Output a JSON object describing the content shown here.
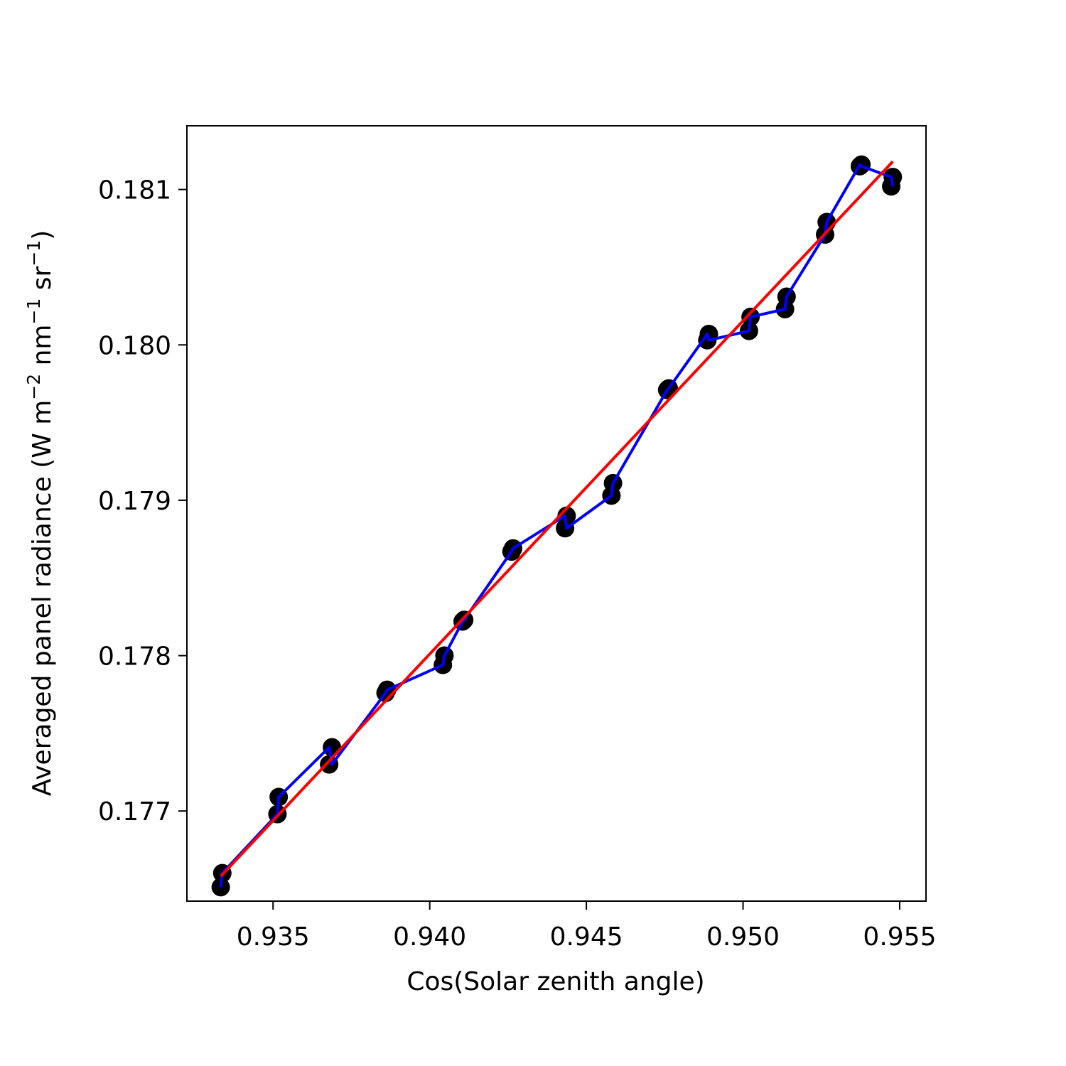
{
  "chart_data": {
    "type": "scatter",
    "title": "",
    "xlabel": "Cos(Solar zenith angle)",
    "ylabel": {
      "prefix": "Averaged panel radiance (W m",
      "exp1": "−2",
      "mid1": " nm",
      "exp2": "−1",
      "mid2": " sr",
      "exp3": "−1",
      "suffix": ")"
    },
    "xlim": [
      0.93225,
      0.95584
    ],
    "ylim": [
      0.17642,
      0.18141
    ],
    "xticks": [
      {
        "value": 0.935,
        "label": "0.935"
      },
      {
        "value": 0.94,
        "label": "0.940"
      },
      {
        "value": 0.945,
        "label": "0.945"
      },
      {
        "value": 0.95,
        "label": "0.950"
      },
      {
        "value": 0.955,
        "label": "0.955"
      }
    ],
    "yticks": [
      {
        "value": 0.177,
        "label": "0.177"
      },
      {
        "value": 0.178,
        "label": "0.178"
      },
      {
        "value": 0.179,
        "label": "0.179"
      },
      {
        "value": 0.18,
        "label": "0.180"
      },
      {
        "value": 0.181,
        "label": "0.181"
      }
    ],
    "grid": false,
    "series": [
      {
        "kind": "scatter",
        "color": "#000000",
        "x": [
          0.93333,
          0.93338,
          0.93514,
          0.93518,
          0.93679,
          0.93688,
          0.93859,
          0.93864,
          0.94042,
          0.94047,
          0.94105,
          0.9411,
          0.94261,
          0.94266,
          0.94432,
          0.94437,
          0.9458,
          0.94585,
          0.94758,
          0.94763,
          0.94886,
          0.94891,
          0.95019,
          0.95024,
          0.95134,
          0.95139,
          0.95262,
          0.95267,
          0.95373,
          0.95378,
          0.95473,
          0.95478
        ],
        "y": [
          0.17651,
          0.1766,
          0.17698,
          0.17709,
          0.1773,
          0.17741,
          0.17776,
          0.17778,
          0.17794,
          0.178,
          0.17822,
          0.17823,
          0.17867,
          0.17869,
          0.17882,
          0.1789,
          0.17903,
          0.17911,
          0.17971,
          0.17972,
          0.18003,
          0.18007,
          0.18009,
          0.18018,
          0.18023,
          0.18031,
          0.18071,
          0.18079,
          0.18115,
          0.18116,
          0.18102,
          0.18108
        ]
      },
      {
        "kind": "line",
        "color": "#0000ff",
        "x": [
          0.93333,
          0.93338,
          0.93514,
          0.93518,
          0.93679,
          0.93688,
          0.93859,
          0.93864,
          0.94042,
          0.94047,
          0.94105,
          0.9411,
          0.94261,
          0.94266,
          0.94432,
          0.94437,
          0.9458,
          0.94585,
          0.94758,
          0.94763,
          0.94886,
          0.94891,
          0.95019,
          0.95024,
          0.95134,
          0.95139,
          0.95262,
          0.95267,
          0.95373,
          0.95378,
          0.95473,
          0.95478
        ],
        "y": [
          0.17651,
          0.1766,
          0.17698,
          0.17709,
          0.17741,
          0.1773,
          0.17776,
          0.17778,
          0.17794,
          0.178,
          0.17822,
          0.17823,
          0.17867,
          0.17869,
          0.1789,
          0.17882,
          0.17903,
          0.17911,
          0.17971,
          0.17972,
          0.18007,
          0.18003,
          0.18009,
          0.18018,
          0.18023,
          0.18031,
          0.18071,
          0.18079,
          0.18116,
          0.18115,
          0.18108,
          0.18102
        ]
      },
      {
        "kind": "fit",
        "color": "#ff0000",
        "x": [
          0.93333,
          0.95478
        ],
        "y": [
          0.17658,
          0.18118
        ]
      }
    ]
  }
}
